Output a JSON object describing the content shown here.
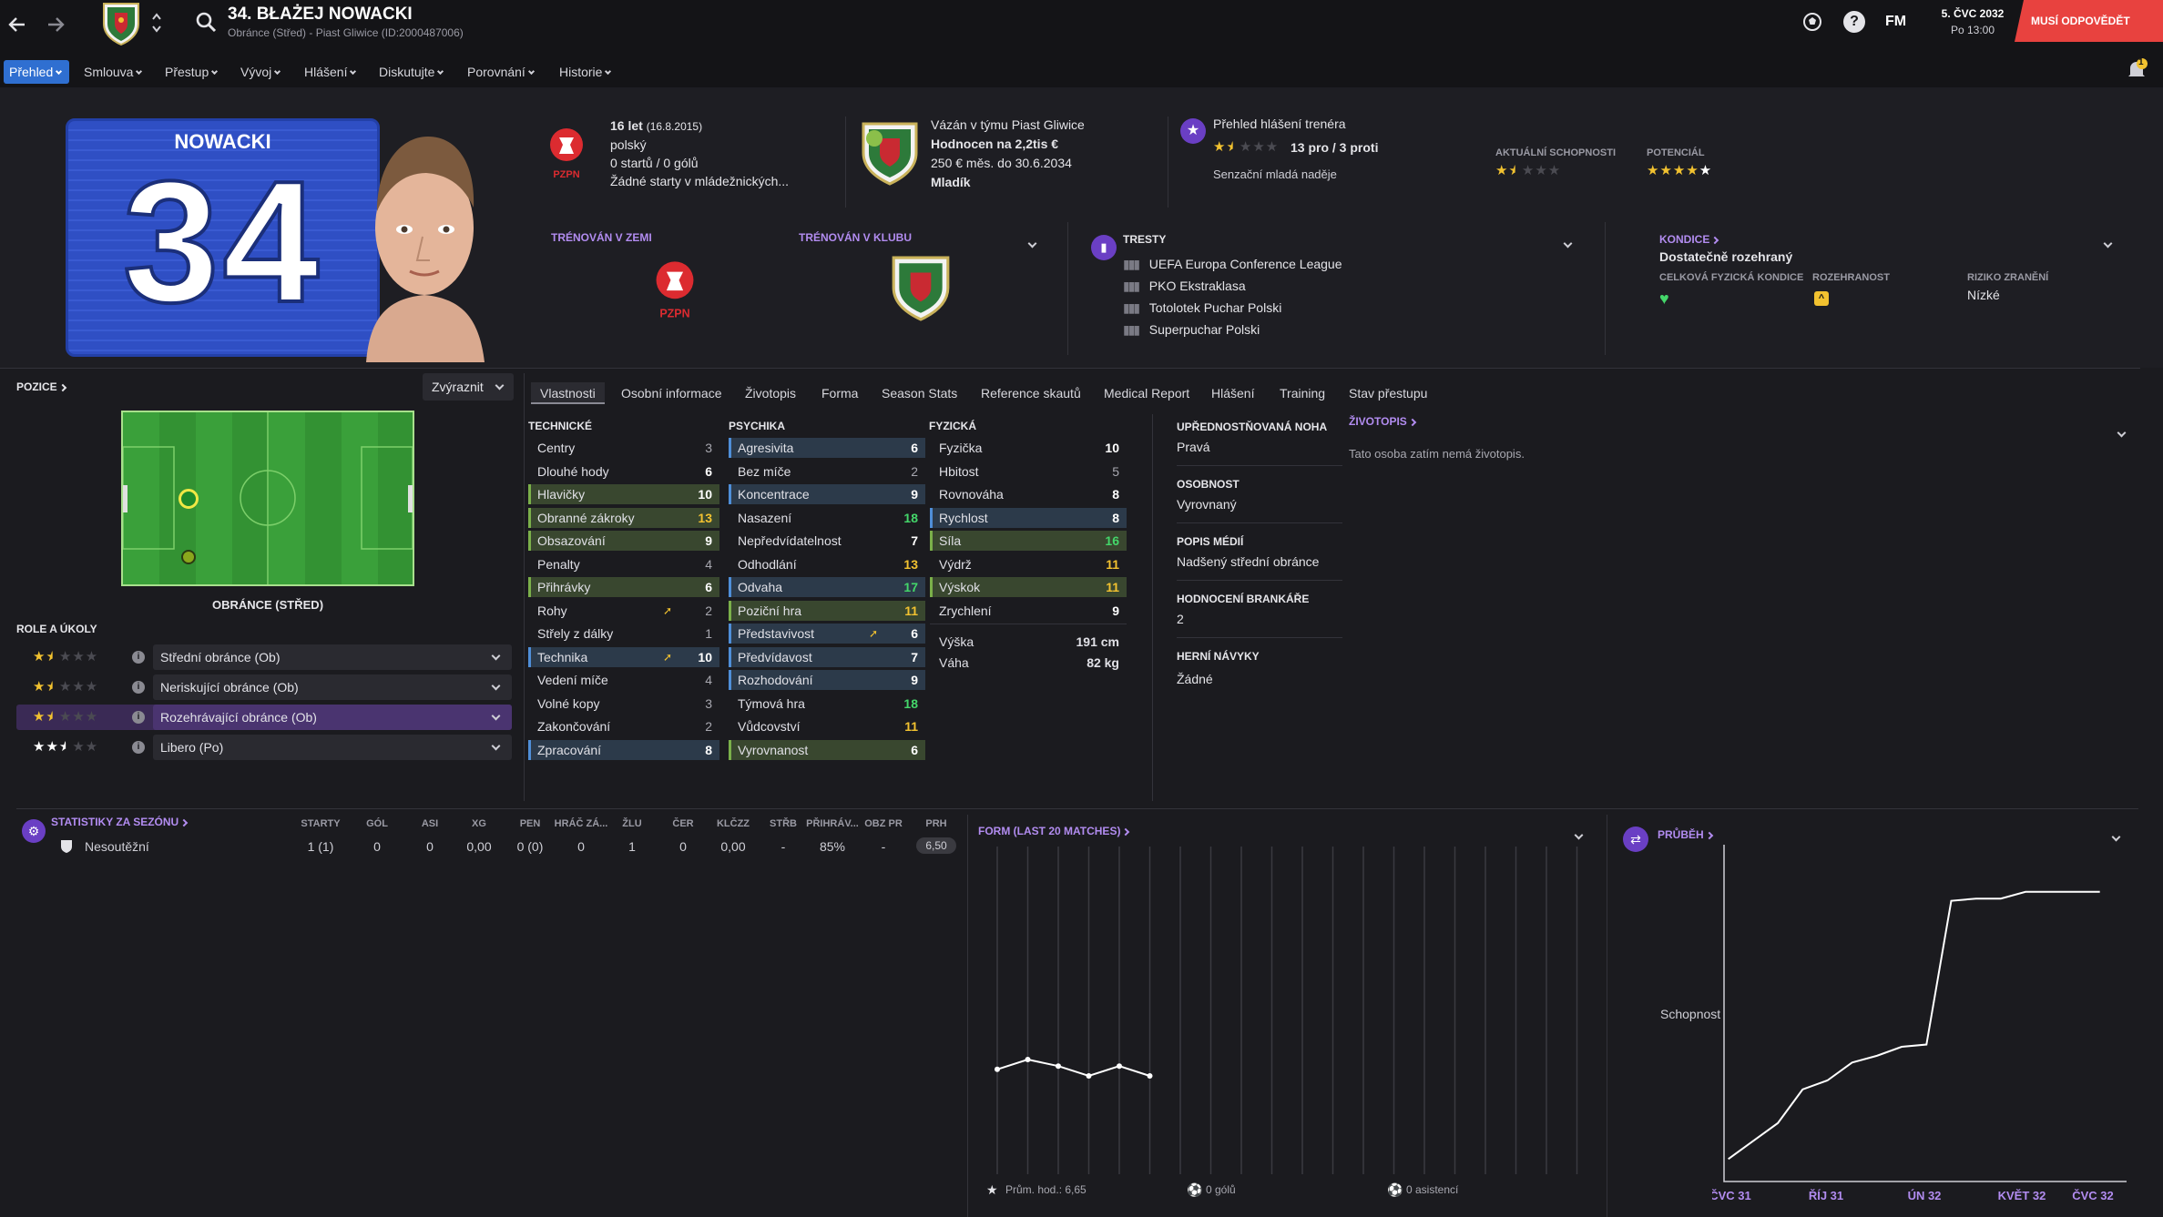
{
  "header": {
    "number_name": "34. BŁAŻEJ NOWACKI",
    "subtitle": "Obránce (Střed) - Piast Gliwice (ID:2000487006)",
    "date": "5. ČVC 2032",
    "time": "Po 13:00",
    "fm": "FM",
    "must_respond": "MUSÍ ODPOVĚDĚT",
    "notif_count": "1"
  },
  "nav": [
    "Přehled",
    "Smlouva",
    "Přestup",
    "Vývoj",
    "Hlášení",
    "Diskutujte",
    "Porovnání",
    "Historie"
  ],
  "shirt": {
    "name": "NOWACKI",
    "number": "34"
  },
  "bio": {
    "age": "16 let",
    "dob": "(16.8.2015)",
    "nationality": "polský",
    "caps": "0 startů / 0 gólů",
    "youth": "Žádné starty v mládežnických..."
  },
  "contract": {
    "line1": "Vázán v týmu Piast Gliwice",
    "value": "Hodnocen na 2,2tis €",
    "wage": "250 € měs. do 30.6.2034",
    "status": "Mladík"
  },
  "coach": {
    "title": "Přehled hlášení trenéra",
    "proscons": "13 pro / 3 proti",
    "verdict": "Senzační mladá naděje",
    "ca_label": "AKTUÁLNÍ SCHOPNOSTI",
    "pa_label": "POTENCIÁL"
  },
  "trained": {
    "nation": "TRÉNOVÁN V ZEMI",
    "club": "TRÉNOVÁN V KLUBU",
    "pzpn": "PZPN"
  },
  "bans": {
    "title": "TRESTY",
    "items": [
      "UEFA Europa Conference League",
      "PKO Ekstraklasa",
      "Totolotek Puchar Polski",
      "Superpuchar Polski"
    ]
  },
  "fitness": {
    "title": "KONDICE",
    "status": "Dostatečně rozehraný",
    "overall_label": "CELKOVÁ FYZICKÁ KONDICE",
    "sharp_label": "ROZEHRANOST",
    "injury_label": "RIZIKO ZRANĚNÍ",
    "injury": "Nízké"
  },
  "position": {
    "title": "POZICE",
    "highlight": "Zvýraznit",
    "name": "OBRÁNCE (STŘED)"
  },
  "roles": {
    "title": "ROLE A ÚKOLY",
    "items": [
      {
        "label": "Střední obránce (Ob)",
        "stars": "★★★★★"
      },
      {
        "label": "Neriskující obránce (Ob)",
        "stars": "★★★★★"
      },
      {
        "label": "Rozehrávající obránce (Ob)",
        "stars": "★★★★★"
      },
      {
        "label": "Libero (Po)",
        "stars": "★★★★★"
      }
    ]
  },
  "tabs": [
    "Vlastnosti",
    "Osobní informace",
    "Životopis",
    "Forma",
    "Season Stats",
    "Reference skautů",
    "Medical Report",
    "Hlášení",
    "Training",
    "Stav přestupu"
  ],
  "attrs": {
    "tech_title": "TECHNICKÉ",
    "mental_title": "PSYCHIKA",
    "phys_title": "FYZICKÁ",
    "technical": [
      [
        "Centry",
        "3"
      ],
      [
        "Dlouhé hody",
        "6"
      ],
      [
        "Hlavičky",
        "10"
      ],
      [
        "Obranné zákroky",
        "13"
      ],
      [
        "Obsazování",
        "9"
      ],
      [
        "Penalty",
        "4"
      ],
      [
        "Přihrávky",
        "6"
      ],
      [
        "Rohy",
        "2"
      ],
      [
        "Střely z dálky",
        "1"
      ],
      [
        "Technika",
        "10"
      ],
      [
        "Vedení míče",
        "4"
      ],
      [
        "Volné kopy",
        "3"
      ],
      [
        "Zakončování",
        "2"
      ],
      [
        "Zpracování",
        "8"
      ]
    ],
    "mental": [
      [
        "Agresivita",
        "6"
      ],
      [
        "Bez míče",
        "2"
      ],
      [
        "Koncentrace",
        "9"
      ],
      [
        "Nasazení",
        "18"
      ],
      [
        "Nepředvídatelnost",
        "7"
      ],
      [
        "Odhodlání",
        "13"
      ],
      [
        "Odvaha",
        "17"
      ],
      [
        "Poziční hra",
        "11"
      ],
      [
        "Představivost",
        "6"
      ],
      [
        "Předvídavost",
        "7"
      ],
      [
        "Rozhodování",
        "9"
      ],
      [
        "Týmová hra",
        "18"
      ],
      [
        "Vůdcovství",
        "11"
      ],
      [
        "Vyrovnanost",
        "6"
      ]
    ],
    "physical": [
      [
        "Fyzička",
        "10"
      ],
      [
        "Hbitost",
        "5"
      ],
      [
        "Rovnováha",
        "8"
      ],
      [
        "Rychlost",
        "8"
      ],
      [
        "Síla",
        "16"
      ],
      [
        "Výdrž",
        "11"
      ],
      [
        "Výskok",
        "11"
      ],
      [
        "Zrychlení",
        "9"
      ]
    ],
    "height_label": "Výška",
    "height": "191 cm",
    "weight_label": "Váha",
    "weight": "82 kg"
  },
  "info": {
    "foot_label": "UPŘEDNOSTŇOVANÁ NOHA",
    "foot": "Pravá",
    "pers_label": "OSOBNOST",
    "pers": "Vyrovnaný",
    "media_label": "POPIS MÉDIÍ",
    "media": "Nadšený střední obránce",
    "gk_label": "HODNOCENÍ BRANKÁŘE",
    "gk": "2",
    "habits_label": "HERNÍ NÁVYKY",
    "habits": "Žádné"
  },
  "bio_section": {
    "title": "ŽIVOTOPIS",
    "text": "Tato osoba zatím nemá životopis."
  },
  "season": {
    "title": "STATISTIKY ZA SEZÓNU",
    "headers": [
      "STARTY",
      "GÓL",
      "ASI",
      "XG",
      "PEN",
      "HRÁČ ZÁ...",
      "ŽLU",
      "ČER",
      "KLČZZ",
      "STŘB",
      "PŘIHRÁV...",
      "OBZ PR",
      "PRH"
    ],
    "row_label": "Nesoutěžní",
    "row": [
      "1 (1)",
      "0",
      "0",
      "0,00",
      "0 (0)",
      "0",
      "1",
      "0",
      "0,00",
      "-",
      "85%",
      "-",
      "6,50"
    ]
  },
  "form": {
    "title": "FORM (LAST 20 MATCHES)",
    "avg": "Prům. hod.: 6,65",
    "goals": "0 gólů",
    "assists": "0 asistencí",
    "points": [
      6.6,
      6.75,
      6.65,
      6.5,
      6.65,
      6.5
    ]
  },
  "progress": {
    "title": "PRŮBĚH",
    "ylabel": "Schopnost",
    "xticks": [
      "ČVC 31",
      "ŘÍJ 31",
      "ÚN 32",
      "KVĚT 32",
      "ČVC 32"
    ]
  },
  "chart_data": {
    "type": "line",
    "series": [
      {
        "name": "Schopnost",
        "x": [
          "ČVC 31",
          "ŘÍJ 31",
          "ÚN 32",
          "KVĚT 32",
          "ČVC 32"
        ],
        "values": [
          1,
          4,
          9.3,
          12.6,
          12.9
        ]
      }
    ]
  },
  "colors": {
    "accent": "#2f6fd1",
    "purple": "#b28cf0",
    "green": "#44d66a",
    "yellow": "#f2c230",
    "red_button": "#e8423f"
  }
}
